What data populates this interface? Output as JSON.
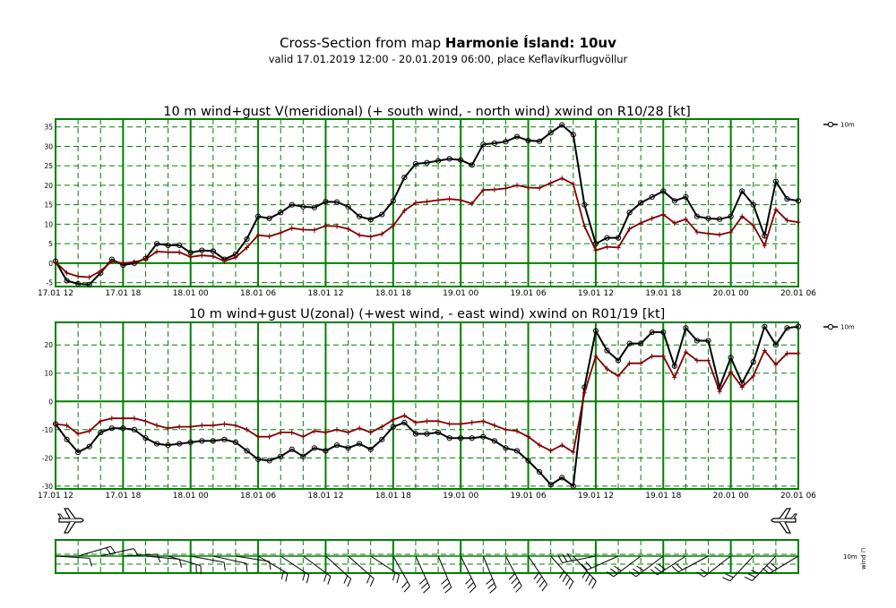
{
  "header": {
    "title_prefix": "Cross-Section from map",
    "title_bold": "Harmonie Ísland: 10uv",
    "subtitle": "valid 17.01.2019 12:00 - 20.01.2019 06:00, place Keflavíkurflugvöllur"
  },
  "colors": {
    "grid": "#008000",
    "wind_10m": "#000000",
    "gust": "#800000"
  },
  "x_tick_labels": [
    "17.01 12",
    "17.01 18",
    "18.01 00",
    "18.01 06",
    "18.01 12",
    "18.01 18",
    "19.01 00",
    "19.01 06",
    "19.01 12",
    "19.01 18",
    "20.01 00",
    "20.01 06"
  ],
  "chart_data": [
    {
      "type": "line",
      "title": "10 m wind+gust V(meridional) (+ south wind, - north wind) xwind on R10/28 [kt]",
      "x_unit": "hours from 17.01 12:00",
      "x_range": [
        0,
        66
      ],
      "ylim": [
        -6,
        37
      ],
      "y_ticks": [
        -5,
        0,
        5,
        10,
        15,
        20,
        25,
        30,
        35
      ],
      "grid": true,
      "legend_position": "top-right",
      "series": [
        {
          "name": "10m",
          "marker": "circle",
          "x": [
            0,
            1,
            2,
            3,
            4,
            5,
            6,
            7,
            8,
            9,
            10,
            11,
            12,
            13,
            14,
            15,
            16,
            17,
            18,
            19,
            20,
            21,
            22,
            23,
            24,
            25,
            26,
            27,
            28,
            29,
            30,
            31,
            32,
            33,
            34,
            35,
            36,
            37,
            38,
            39,
            40,
            41,
            42,
            43,
            44,
            45,
            46,
            47,
            48,
            49,
            50,
            51,
            52,
            53,
            54,
            55,
            56,
            57,
            58,
            59,
            60,
            61,
            62,
            63,
            64,
            65,
            66
          ],
          "values": [
            0.5,
            -4.5,
            -5.3,
            -5.5,
            -2.5,
            1.0,
            -0.5,
            0,
            1.2,
            5,
            4.6,
            4.6,
            2.7,
            3.3,
            3.1,
            1.0,
            2.3,
            6.2,
            12,
            11.5,
            13,
            15,
            14.5,
            14.3,
            15.8,
            15.7,
            14.5,
            12,
            11.2,
            12.5,
            16,
            22,
            25.5,
            25.8,
            26.3,
            26.8,
            26.5,
            25.2,
            30.5,
            30.8,
            31.2,
            32.5,
            31.5,
            31.3,
            33.5,
            35.5,
            33,
            15,
            5,
            6.5,
            6.5,
            13,
            15.5,
            17,
            18.5,
            16,
            17,
            12,
            11.5,
            11.3,
            12,
            18.5,
            15,
            7,
            21,
            16.5,
            16
          ]
        },
        {
          "name": "",
          "marker": "plus",
          "x": [
            0,
            1,
            2,
            3,
            4,
            5,
            6,
            7,
            8,
            9,
            10,
            11,
            12,
            13,
            14,
            15,
            16,
            17,
            18,
            19,
            20,
            21,
            22,
            23,
            24,
            25,
            26,
            27,
            28,
            29,
            30,
            31,
            32,
            33,
            34,
            35,
            36,
            37,
            38,
            39,
            40,
            41,
            42,
            43,
            44,
            45,
            46,
            47,
            48,
            49,
            50,
            51,
            52,
            53,
            54,
            55,
            56,
            57,
            58,
            59,
            60,
            61,
            62,
            63,
            64,
            65,
            66
          ],
          "values": [
            0.3,
            -2.5,
            -3.4,
            -3.6,
            -2.0,
            0.5,
            0,
            0.3,
            1.0,
            3.0,
            2.8,
            2.8,
            1.6,
            2.0,
            1.8,
            0.5,
            1.5,
            4.0,
            7.2,
            6.9,
            7.8,
            9.0,
            8.6,
            8.5,
            9.6,
            9.5,
            8.8,
            7.2,
            6.8,
            7.5,
            9.6,
            13.5,
            15.5,
            15.8,
            16.2,
            16.5,
            16.2,
            15.3,
            18.8,
            18.9,
            19.2,
            20,
            19.4,
            19.3,
            20.6,
            21.8,
            20.3,
            9.5,
            3.3,
            4.2,
            4.0,
            8.8,
            10.3,
            11.5,
            12.5,
            10.3,
            11.3,
            8,
            7.6,
            7.3,
            8.0,
            12,
            9.7,
            4.5,
            13.8,
            11,
            10.5
          ]
        }
      ]
    },
    {
      "type": "line",
      "title": "10 m wind+gust U(zonal) (+west wind, - east wind) xwind on R01/19 [kt]",
      "x_unit": "hours from 17.01 12:00",
      "x_range": [
        0,
        66
      ],
      "ylim": [
        -31,
        28
      ],
      "y_ticks": [
        -30,
        -20,
        -10,
        0,
        10,
        20
      ],
      "grid": true,
      "legend_position": "top-right",
      "series": [
        {
          "name": "10m",
          "marker": "circle",
          "x": [
            0,
            1,
            2,
            3,
            4,
            5,
            6,
            7,
            8,
            9,
            10,
            11,
            12,
            13,
            14,
            15,
            16,
            17,
            18,
            19,
            20,
            21,
            22,
            23,
            24,
            25,
            26,
            27,
            28,
            29,
            30,
            31,
            32,
            33,
            34,
            35,
            36,
            37,
            38,
            39,
            40,
            41,
            42,
            43,
            44,
            45,
            46,
            47,
            48,
            49,
            50,
            51,
            52,
            53,
            54,
            55,
            56,
            57,
            58,
            59,
            60,
            61,
            62,
            63,
            64,
            65,
            66
          ],
          "values": [
            -8,
            -13.5,
            -18,
            -16,
            -11,
            -9.5,
            -9.5,
            -10,
            -13,
            -15,
            -15.5,
            -15,
            -14.5,
            -14,
            -14,
            -13.5,
            -14.5,
            -17.5,
            -20.5,
            -21,
            -19.5,
            -17,
            -19.5,
            -16.5,
            -17.5,
            -15.5,
            -16.5,
            -15,
            -17,
            -13.5,
            -9,
            -7.5,
            -11.5,
            -11.5,
            -11,
            -13,
            -13,
            -13,
            -12.5,
            -14,
            -16.5,
            -17.5,
            -21,
            -25,
            -29.5,
            -27,
            -30,
            5,
            25,
            18,
            14.5,
            20.5,
            20.5,
            24.5,
            24.5,
            12.5,
            26,
            21.5,
            21.5,
            5,
            15.5,
            6.5,
            14,
            26.5,
            20,
            26,
            26.5
          ]
        },
        {
          "name": "",
          "marker": "plus",
          "x": [
            0,
            1,
            2,
            3,
            4,
            5,
            6,
            7,
            8,
            9,
            10,
            11,
            12,
            13,
            14,
            15,
            16,
            17,
            18,
            19,
            20,
            21,
            22,
            23,
            24,
            25,
            26,
            27,
            28,
            29,
            30,
            31,
            32,
            33,
            34,
            35,
            36,
            37,
            38,
            39,
            40,
            41,
            42,
            43,
            44,
            45,
            46,
            47,
            48,
            49,
            50,
            51,
            52,
            53,
            54,
            55,
            56,
            57,
            58,
            59,
            60,
            61,
            62,
            63,
            64,
            65,
            66
          ],
          "values": [
            -8,
            -8.5,
            -11.5,
            -10.5,
            -7,
            -6,
            -6,
            -6,
            -7,
            -8.5,
            -9.5,
            -9,
            -9,
            -8.5,
            -8.5,
            -8,
            -8.5,
            -10,
            -12.5,
            -12.5,
            -11,
            -11,
            -12.5,
            -10.5,
            -11,
            -10,
            -11,
            -9.5,
            -11,
            -9,
            -6.5,
            -5,
            -7.5,
            -7,
            -7,
            -8,
            -8,
            -7.5,
            -7,
            -8.5,
            -10,
            -10.5,
            -12.5,
            -15.5,
            -17.5,
            -15.5,
            -18,
            3,
            16,
            11.5,
            9,
            13.5,
            13.5,
            16,
            16,
            8.5,
            17.5,
            14.5,
            14.5,
            3.5,
            10.5,
            5,
            9,
            18,
            13,
            17,
            17
          ]
        }
      ]
    }
  ]
}
